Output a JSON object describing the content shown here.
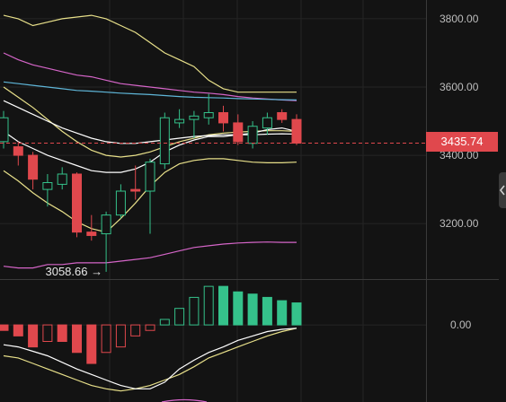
{
  "chart_data": [
    {
      "type": "candlestick",
      "panel": "price",
      "y_ticks": [
        "3800.00",
        "3600.00",
        "3400.00",
        "3200.00"
      ],
      "y_tick_values": [
        3800,
        3600,
        3400,
        3200
      ],
      "ylim": [
        3040,
        3855
      ],
      "current_price_label": "3435.74",
      "current_price": 3435.74,
      "min_label": "3058.66 →",
      "min_value": 3058.66,
      "min_candle_index": 7,
      "candles": [
        {
          "o": 3440,
          "h": 3530,
          "l": 3420,
          "c": 3510
        },
        {
          "o": 3425,
          "h": 3440,
          "l": 3370,
          "c": 3400
        },
        {
          "o": 3400,
          "h": 3410,
          "l": 3300,
          "c": 3330
        },
        {
          "o": 3300,
          "h": 3345,
          "l": 3250,
          "c": 3320
        },
        {
          "o": 3315,
          "h": 3365,
          "l": 3300,
          "c": 3345
        },
        {
          "o": 3345,
          "h": 3350,
          "l": 3160,
          "c": 3175
        },
        {
          "o": 3175,
          "h": 3225,
          "l": 3150,
          "c": 3165
        },
        {
          "o": 3170,
          "h": 3235,
          "l": 3058.66,
          "c": 3225
        },
        {
          "o": 3225,
          "h": 3315,
          "l": 3215,
          "c": 3295
        },
        {
          "o": 3300,
          "h": 3370,
          "l": 3270,
          "c": 3295
        },
        {
          "o": 3295,
          "h": 3390,
          "l": 3170,
          "c": 3380
        },
        {
          "o": 3375,
          "h": 3525,
          "l": 3360,
          "c": 3510
        },
        {
          "o": 3495,
          "h": 3535,
          "l": 3480,
          "c": 3505
        },
        {
          "o": 3505,
          "h": 3530,
          "l": 3450,
          "c": 3515
        },
        {
          "o": 3510,
          "h": 3580,
          "l": 3490,
          "c": 3525
        },
        {
          "o": 3525,
          "h": 3545,
          "l": 3470,
          "c": 3495
        },
        {
          "o": 3495,
          "h": 3520,
          "l": 3430,
          "c": 3440
        },
        {
          "o": 3435,
          "h": 3500,
          "l": 3420,
          "c": 3485
        },
        {
          "o": 3480,
          "h": 3525,
          "l": 3460,
          "c": 3510
        },
        {
          "o": 3525,
          "h": 3535,
          "l": 3495,
          "c": 3505
        },
        {
          "o": 3505,
          "h": 3520,
          "l": 3430,
          "c": 3435.74
        }
      ],
      "lines": [
        {
          "color": "#e8e08a",
          "values": [
            3810,
            3800,
            3780,
            3790,
            3800,
            3805,
            3810,
            3800,
            3780,
            3760,
            3730,
            3700,
            3680,
            3660,
            3620,
            3595,
            3585,
            3585,
            3585,
            3585,
            3585
          ]
        },
        {
          "color": "#e8e08a",
          "values": [
            3355,
            3325,
            3290,
            3260,
            3235,
            3205,
            3185,
            3175,
            3215,
            3260,
            3310,
            3350,
            3375,
            3385,
            3390,
            3390,
            3385,
            3380,
            3378,
            3378,
            3380
          ]
        },
        {
          "color": "#d565c8",
          "values": [
            3700,
            3680,
            3665,
            3655,
            3645,
            3635,
            3630,
            3620,
            3610,
            3605,
            3600,
            3595,
            3590,
            3585,
            3582,
            3578,
            3572,
            3568,
            3565,
            3562,
            3560
          ]
        },
        {
          "color": "#d565c8",
          "values": [
            3075,
            3070,
            3070,
            3080,
            3080,
            3085,
            3085,
            3085,
            3090,
            3095,
            3100,
            3110,
            3120,
            3130,
            3135,
            3140,
            3143,
            3145,
            3146,
            3145,
            3145
          ]
        },
        {
          "color": "#5fb6d8",
          "values": [
            3615,
            3610,
            3605,
            3600,
            3595,
            3590,
            3588,
            3585,
            3582,
            3580,
            3578,
            3575,
            3572,
            3570,
            3569,
            3568,
            3566,
            3565,
            3564,
            3563,
            3562
          ]
        },
        {
          "color": "#e8e08a",
          "values": [
            3600,
            3570,
            3540,
            3505,
            3470,
            3440,
            3415,
            3400,
            3395,
            3400,
            3410,
            3425,
            3440,
            3450,
            3460,
            3465,
            3468,
            3470,
            3472,
            3472,
            3470
          ]
        },
        {
          "color": "#ffffff",
          "values": [
            3470,
            3440,
            3420,
            3400,
            3385,
            3370,
            3355,
            3350,
            3350,
            3360,
            3380,
            3410,
            3430,
            3445,
            3455,
            3455,
            3460,
            3465,
            3475,
            3480,
            3470
          ]
        },
        {
          "color": "#ffffff",
          "values": [
            3560,
            3540,
            3520,
            3500,
            3480,
            3465,
            3450,
            3440,
            3435,
            3435,
            3440,
            3445,
            3450,
            3455,
            3458,
            3460,
            3460,
            3460,
            3462,
            3463,
            3462
          ]
        }
      ]
    },
    {
      "type": "bar",
      "panel": "macd",
      "y_ticks": [
        "0.00"
      ],
      "zero": 0,
      "ylim": [
        -70,
        40
      ],
      "histogram": [
        -5,
        -10,
        -20,
        -15,
        -15,
        -25,
        -35,
        -25,
        -20,
        -10,
        -5,
        5,
        15,
        25,
        35,
        35,
        30,
        28,
        25,
        22,
        20
      ],
      "lines": [
        {
          "color": "#e8e08a",
          "values": [
            -28,
            -30,
            -35,
            -40,
            -45,
            -50,
            -55,
            -58,
            -60,
            -58,
            -55,
            -50,
            -45,
            -38,
            -30,
            -25,
            -20,
            -15,
            -10,
            -6,
            -3
          ]
        },
        {
          "color": "#ffffff",
          "values": [
            -18,
            -20,
            -24,
            -28,
            -34,
            -40,
            -45,
            -50,
            -55,
            -58,
            -58,
            -52,
            -40,
            -32,
            -25,
            -20,
            -14,
            -10,
            -6,
            -4,
            -3
          ]
        }
      ]
    }
  ],
  "colors": {
    "background": "#131313",
    "up": "#35c28b",
    "down": "#e0484d",
    "grid": "#242424",
    "separator": "#3a3a3a"
  }
}
